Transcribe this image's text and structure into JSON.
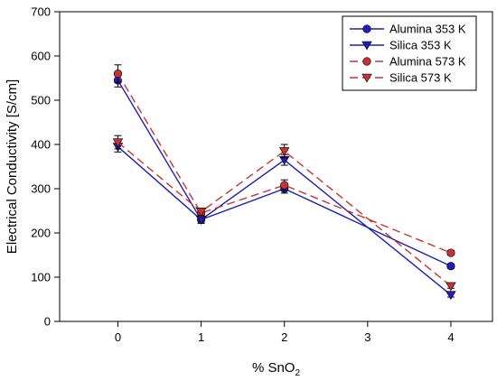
{
  "chart_data": {
    "type": "line",
    "xlabel_main": "% SnO",
    "xlabel_sub": "2",
    "ylabel": "Electrical Conductivity [S/cm]",
    "xlim": [
      -0.7,
      4.5
    ],
    "ylim": [
      0,
      700
    ],
    "xticks": [
      0,
      1,
      2,
      3,
      4
    ],
    "yticks": [
      0,
      100,
      200,
      300,
      400,
      500,
      600,
      700
    ],
    "grid": false,
    "legend_position": "top-right",
    "x": [
      0,
      1,
      2,
      4
    ],
    "series": [
      {
        "name": "Alumina 353 K",
        "color": "#1f1fb4",
        "dash": "solid",
        "marker": "circle",
        "values": [
          545,
          230,
          300,
          125
        ],
        "errors": [
          15,
          8,
          10,
          5
        ]
      },
      {
        "name": "Silica 353 K",
        "color": "#1f1fb4",
        "dash": "solid",
        "marker": "triangle-down",
        "values": [
          395,
          230,
          365,
          60
        ],
        "errors": [
          12,
          8,
          12,
          5
        ]
      },
      {
        "name": "Alumina 573 K",
        "color": "#c83232",
        "dash": "dashed",
        "marker": "circle",
        "values": [
          560,
          245,
          308,
          155
        ],
        "errors": [
          20,
          8,
          12,
          5
        ]
      },
      {
        "name": "Silica 573 K",
        "color": "#c83232",
        "dash": "dashed",
        "marker": "triangle-down",
        "values": [
          405,
          248,
          385,
          80
        ],
        "errors": [
          15,
          8,
          15,
          5
        ]
      }
    ]
  }
}
